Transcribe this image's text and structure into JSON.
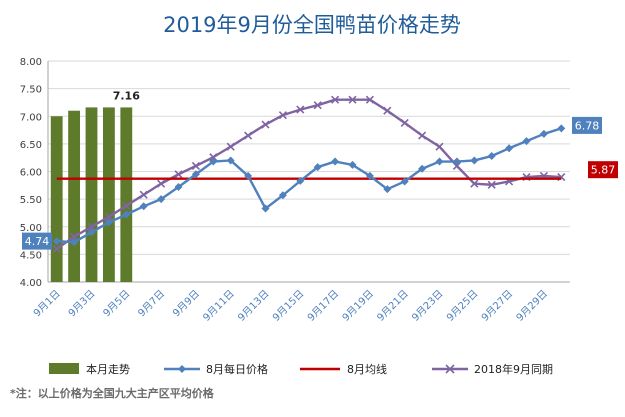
{
  "chart_data": {
    "type": "bar+line",
    "title": "2019年9月份全国鸭苗价格走势",
    "x": [
      "9月1日",
      "9月2日",
      "9月3日",
      "9月4日",
      "9月5日",
      "9月6日",
      "9月7日",
      "9月8日",
      "9月9日",
      "9月10日",
      "9月11日",
      "9月12日",
      "9月13日",
      "9月14日",
      "9月15日",
      "9月16日",
      "9月17日",
      "9月18日",
      "9月19日",
      "9月20日",
      "9月21日",
      "9月22日",
      "9月23日",
      "9月24日",
      "9月25日",
      "9月26日",
      "9月27日",
      "9月28日",
      "9月29日",
      "9月30日"
    ],
    "x_tick_labels": [
      "9月1日",
      "9月3日",
      "9月5日",
      "9月7日",
      "9月9日",
      "9月11日",
      "9月13日",
      "9月15日",
      "9月17日",
      "9月19日",
      "9月21日",
      "9月23日",
      "9月25日",
      "9月27日",
      "9月29日"
    ],
    "ylim": [
      4.0,
      8.0
    ],
    "yticks": [
      "4.00",
      "4.50",
      "5.00",
      "5.50",
      "6.00",
      "6.50",
      "7.00",
      "7.50",
      "8.00"
    ],
    "grid": true,
    "legend_position": "bottom",
    "series": [
      {
        "name": "本月走势",
        "kind": "bar",
        "color": "#5e7a2b",
        "values": [
          7.0,
          7.1,
          7.16,
          7.16,
          7.16,
          null,
          null,
          null,
          null,
          null,
          null,
          null,
          null,
          null,
          null,
          null,
          null,
          null,
          null,
          null,
          null,
          null,
          null,
          null,
          null,
          null,
          null,
          null,
          null,
          null
        ]
      },
      {
        "name": "8月每日价格",
        "kind": "line",
        "marker": "diamond",
        "color": "#4f81bd",
        "values": [
          4.74,
          4.72,
          4.9,
          5.08,
          5.22,
          5.37,
          5.5,
          5.72,
          5.95,
          6.18,
          6.2,
          5.92,
          5.33,
          5.57,
          5.83,
          6.08,
          6.18,
          6.12,
          5.92,
          5.68,
          5.82,
          6.05,
          6.18,
          6.18,
          6.2,
          6.28,
          6.42,
          6.55,
          6.68,
          6.78
        ]
      },
      {
        "name": "8月均线",
        "kind": "line",
        "color": "#c00000",
        "values": [
          5.87,
          5.87,
          5.87,
          5.87,
          5.87,
          5.87,
          5.87,
          5.87,
          5.87,
          5.87,
          5.87,
          5.87,
          5.87,
          5.87,
          5.87,
          5.87,
          5.87,
          5.87,
          5.87,
          5.87,
          5.87,
          5.87,
          5.87,
          5.87,
          5.87,
          5.87,
          5.87,
          5.87,
          5.87,
          5.87
        ]
      },
      {
        "name": "2018年9月同期",
        "kind": "line",
        "marker": "x",
        "color": "#8064a2",
        "values": [
          4.6,
          4.82,
          5.0,
          5.18,
          5.38,
          5.58,
          5.78,
          5.95,
          6.1,
          6.26,
          6.45,
          6.65,
          6.85,
          7.02,
          7.12,
          7.2,
          7.3,
          7.3,
          7.3,
          7.1,
          6.88,
          6.65,
          6.45,
          6.1,
          5.78,
          5.76,
          5.82,
          5.9,
          5.92,
          5.9
        ]
      }
    ],
    "data_labels": [
      {
        "series": "本月走势",
        "index": 4,
        "text": "7.16"
      },
      {
        "series": "8月每日价格",
        "index": 0,
        "text": "4.74"
      },
      {
        "series": "8月每日价格",
        "index": 29,
        "text": "6.78"
      },
      {
        "series": "8月均线",
        "index": 29,
        "text": "5.87"
      }
    ]
  },
  "colors": {
    "bar": "#5e7a2b",
    "line_8月": "#4f81bd",
    "mean": "#c00000",
    "line_2018": "#8064a2",
    "title": "#1f5c99",
    "footnote": "#6b6b6b",
    "grid": "#d9d9d9"
  },
  "footnote": "*注：以上价格为全国九大主产区平均价格"
}
